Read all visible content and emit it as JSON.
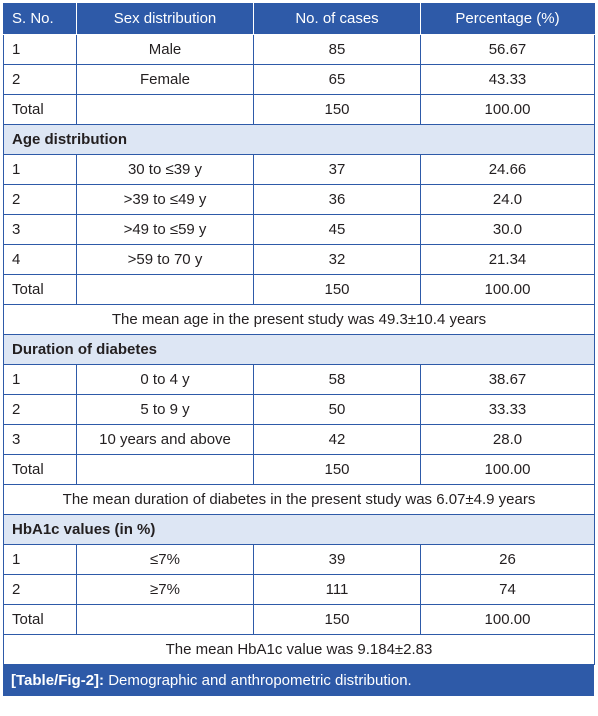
{
  "headers": [
    "S. No.",
    "Sex distribution",
    "No. of cases",
    "Percentage (%)"
  ],
  "sex": {
    "rows": [
      {
        "sno": "1",
        "label": "Male",
        "cases": "85",
        "pct": "56.67"
      },
      {
        "sno": "2",
        "label": "Female",
        "cases": "65",
        "pct": "43.33"
      }
    ],
    "total": {
      "label": "Total",
      "cases": "150",
      "pct": "100.00"
    }
  },
  "age": {
    "title": "Age distribution",
    "rows": [
      {
        "sno": "1",
        "label": "30 to ≤39 y",
        "cases": "37",
        "pct": "24.66"
      },
      {
        "sno": "2",
        "label": ">39 to ≤49 y",
        "cases": "36",
        "pct": "24.0"
      },
      {
        "sno": "3",
        "label": ">49 to ≤59 y",
        "cases": "45",
        "pct": "30.0"
      },
      {
        "sno": "4",
        "label": ">59 to 70 y",
        "cases": "32",
        "pct": "21.34"
      }
    ],
    "total": {
      "label": "Total",
      "cases": "150",
      "pct": "100.00"
    },
    "note": "The mean age in the present study was 49.3±10.4 years"
  },
  "duration": {
    "title": "Duration of diabetes",
    "rows": [
      {
        "sno": "1",
        "label": "0 to 4 y",
        "cases": "58",
        "pct": "38.67"
      },
      {
        "sno": "2",
        "label": "5 to 9 y",
        "cases": "50",
        "pct": "33.33"
      },
      {
        "sno": "3",
        "label": "10 years and above",
        "cases": "42",
        "pct": "28.0"
      }
    ],
    "total": {
      "label": "Total",
      "cases": "150",
      "pct": "100.00"
    },
    "note": "The mean duration of diabetes in the present study was 6.07±4.9 years"
  },
  "hba1c": {
    "title": "HbA1c values (in %)",
    "rows": [
      {
        "sno": "1",
        "label": "≤7%",
        "cases": "39",
        "pct": "26"
      },
      {
        "sno": "2",
        "label": "≥7%",
        "cases": "111",
        "pct": "74"
      }
    ],
    "total": {
      "label": "Total",
      "cases": "150",
      "pct": "100.00"
    },
    "note": "The mean HbA1c value was 9.184±2.83"
  },
  "caption": {
    "label": "[Table/Fig-2]:",
    "text": "Demographic and anthropometric distribution."
  },
  "colors": {
    "header_bg": "#2e5aa8",
    "section_bg": "#dde6f4",
    "text": "#231f20"
  }
}
